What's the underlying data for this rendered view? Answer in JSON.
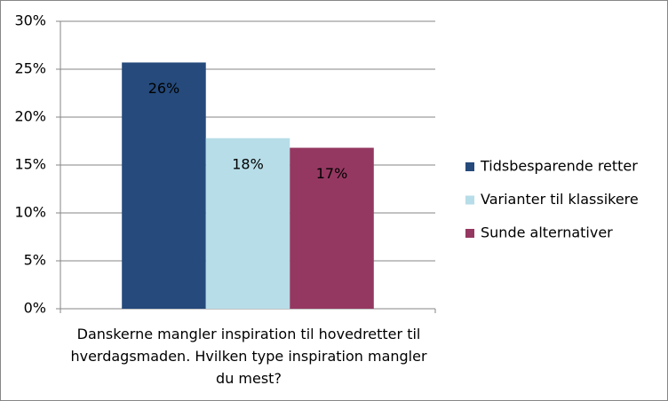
{
  "chart_data": {
    "type": "bar",
    "categories": [
      "Danskerne mangler inspiration til hovedretter til hverdagsmaden. Hvilken type inspiration mangler du mest?"
    ],
    "series": [
      {
        "name": "Tidsbesparende retter",
        "color": "#254a7b",
        "values": [
          25.7
        ],
        "value_labels": [
          "26%"
        ]
      },
      {
        "name": "Varianter til klassikere",
        "color": "#b7dde8",
        "values": [
          17.8
        ],
        "value_labels": [
          "18%"
        ]
      },
      {
        "name": "Sunde alternativer",
        "color": "#953861",
        "values": [
          16.8
        ],
        "value_labels": [
          "17%"
        ]
      }
    ],
    "ylim": [
      0,
      30
    ],
    "yticks": [
      {
        "value": 0,
        "label": "0%"
      },
      {
        "value": 5,
        "label": "5%"
      },
      {
        "value": 10,
        "label": "10%"
      },
      {
        "value": 15,
        "label": "15%"
      },
      {
        "value": 20,
        "label": "20%"
      },
      {
        "value": 25,
        "label": "25%"
      },
      {
        "value": 30,
        "label": "30%"
      }
    ],
    "grid": true,
    "legend": "right"
  }
}
